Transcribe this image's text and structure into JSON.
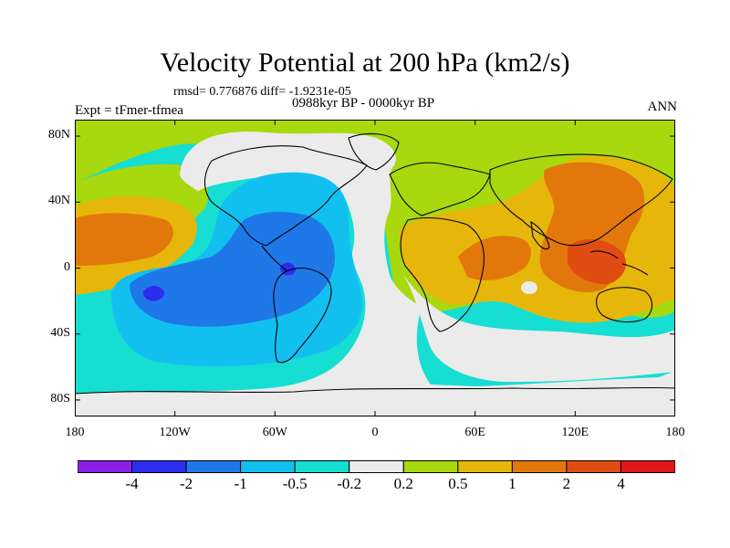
{
  "title": "Velocity Potential at 200 hPa (km2/s)",
  "stats": "rmsd= 0.776876 diff= -1.9231e-05",
  "left_label": "Expt = tFmer-tfmea",
  "center_label": "0988kyr BP - 0000kyr BP",
  "right_label": "ANN",
  "lat_ticks": [
    {
      "label": "80N",
      "lat": 80
    },
    {
      "label": "40N",
      "lat": 40
    },
    {
      "label": "0",
      "lat": 0
    },
    {
      "label": "40S",
      "lat": -40
    },
    {
      "label": "80S",
      "lat": -80
    }
  ],
  "lon_ticks": [
    {
      "label": "180",
      "lon": -180
    },
    {
      "label": "120W",
      "lon": -120
    },
    {
      "label": "60W",
      "lon": -60
    },
    {
      "label": "0",
      "lon": 0
    },
    {
      "label": "60E",
      "lon": 60
    },
    {
      "label": "120E",
      "lon": 120
    },
    {
      "label": "180",
      "lon": 180
    }
  ],
  "colorbar": {
    "colors": [
      "#8c1ee6",
      "#2d2ded",
      "#1f78e8",
      "#12c0f0",
      "#16ded2",
      "#ebebeb",
      "#a8d80e",
      "#e6b70a",
      "#e2780b",
      "#e04d12",
      "#e01818"
    ],
    "boundaries": [
      "-4",
      "-2",
      "-1",
      "-0.5",
      "-0.2",
      "0.2",
      "0.5",
      "1",
      "2",
      "4"
    ]
  }
}
